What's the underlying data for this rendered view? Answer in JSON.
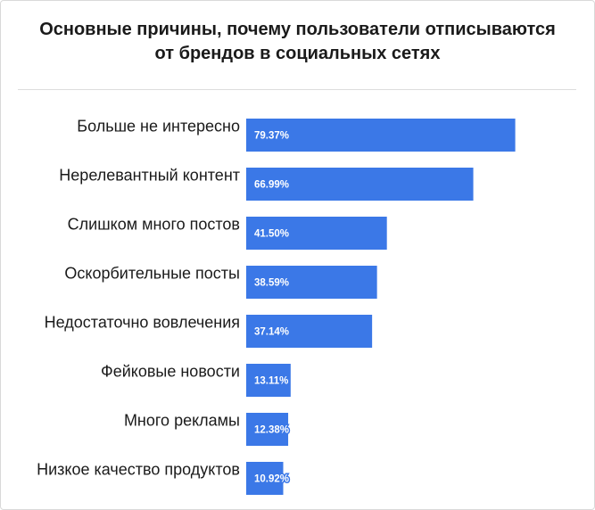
{
  "chart_data": {
    "type": "bar",
    "orientation": "horizontal",
    "title_lines": [
      "Основные причины, почему пользователи отписываются",
      "от брендов в социальных сетях"
    ],
    "categories": [
      "Больше не интересно",
      "Нерелевантный контент",
      "Слишком много постов",
      "Оскорбительные посты",
      "Недостаточно вовлечения",
      "Фейковые новости",
      "Много рекламы",
      "Низкое качество продуктов"
    ],
    "values": [
      79.37,
      66.99,
      41.5,
      38.59,
      37.14,
      13.11,
      12.38,
      10.92
    ],
    "data_labels": [
      "79.37%",
      "66.99%",
      "41.50%",
      "38.59%",
      "37.14%",
      "13.11%",
      "12.38%",
      "10.92%"
    ],
    "xlim": [
      0,
      100
    ],
    "xlabel": "",
    "ylabel": "",
    "grid": false,
    "legend": "none",
    "bar_color": "#3b78e7"
  }
}
